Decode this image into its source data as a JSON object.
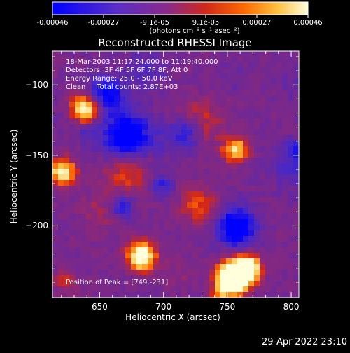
{
  "colorbar": {
    "tick_labels": [
      "-0.00046",
      "-0.00027",
      "-9.1e-05",
      "9.1e-05",
      "0.00027",
      "0.00046"
    ],
    "unit_label": "(photons cm⁻² s⁻¹ asec⁻²)",
    "colors": [
      "#0000ff",
      "#6030c0",
      "#8a2a8a",
      "#c8281a",
      "#ff6a00",
      "#ffc040",
      "#ffffd0"
    ]
  },
  "plot": {
    "title": "Reconstructed RHESSI Image",
    "annotation_lines": [
      "18-Mar-2003 11:17:24.000 to 11:19:40.000",
      "Detectors: 3F 4F 5F 6F 7F 8F, Att 0",
      "Energy Range: 25.0 - 50.0 keV",
      "Clean     Total counts: 2.87E+03"
    ],
    "peak_label": "Position of Peak = [749,-231]",
    "xlabel": "Heliocentric X (arcsec)",
    "ylabel": "Heliocentric Y (arcsec)",
    "xticks": [
      "650",
      "700",
      "750",
      "800"
    ],
    "yticks": [
      "-100",
      "-150",
      "-200"
    ],
    "xlim": [
      613,
      806
    ],
    "ylim": [
      -251,
      -76
    ]
  },
  "timestamp": "29-Apr-2022 23:10",
  "chart_data": {
    "type": "heatmap",
    "title": "Reconstructed RHESSI Image",
    "xlabel": "Heliocentric X (arcsec)",
    "ylabel": "Heliocentric Y (arcsec)",
    "xlim": [
      613,
      806
    ],
    "ylim": [
      -251,
      -76
    ],
    "color_range": [
      -0.00046,
      0.00046
    ],
    "peak": {
      "x": 749,
      "y": -231
    }
  }
}
